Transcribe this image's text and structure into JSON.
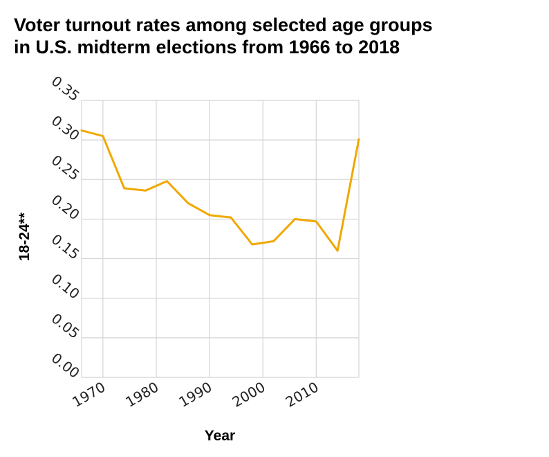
{
  "chart_data": {
    "type": "line",
    "title_lines": [
      "Voter turnout rates among selected age groups",
      "in U.S. midterm elections from 1966 to 2018"
    ],
    "xlabel": "Year",
    "ylabel": "18-24**",
    "xlim": [
      1966,
      2018
    ],
    "ylim": [
      0,
      0.35
    ],
    "xticks": [
      1970,
      1980,
      1990,
      2000,
      2010
    ],
    "yticks": [
      "0.00",
      "0.05",
      "0.10",
      "0.15",
      "0.20",
      "0.25",
      "0.30",
      "0.35"
    ],
    "grid": true,
    "color": "#f0a800",
    "series": [
      {
        "x": [
          1966,
          1970,
          1974,
          1978,
          1982,
          1986,
          1990,
          1994,
          1998,
          2002,
          2006,
          2010,
          2014,
          2018
        ],
        "y": [
          0.312,
          0.305,
          0.239,
          0.236,
          0.248,
          0.22,
          0.205,
          0.202,
          0.168,
          0.172,
          0.2,
          0.197,
          0.16,
          0.301
        ]
      }
    ]
  }
}
